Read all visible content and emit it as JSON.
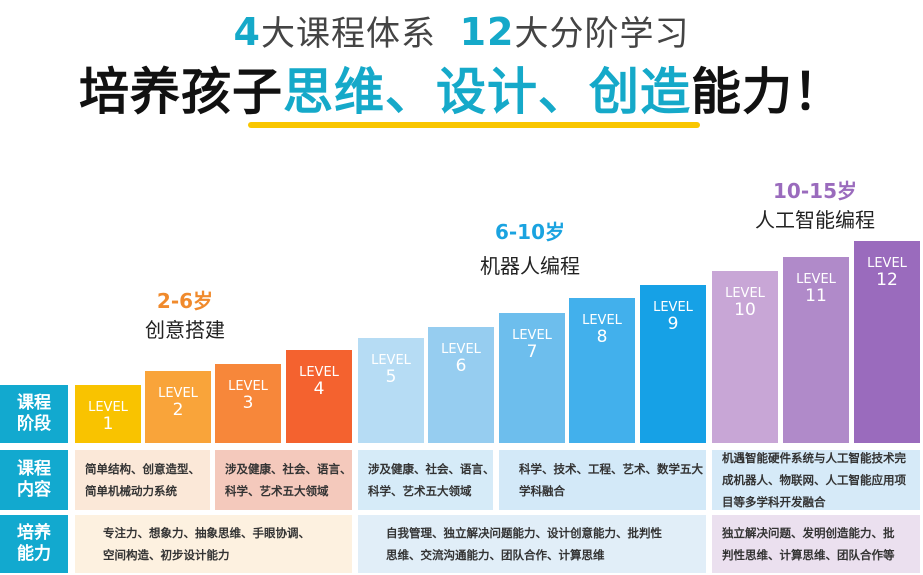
{
  "header": {
    "subtitle_num1": "4",
    "subtitle_text1": "大课程体系",
    "subtitle_num2": "12",
    "subtitle_text2": "大分阶学习",
    "headline_pre": "培养孩子",
    "headline_highlight": "思维、设计、创造",
    "headline_post": "能力！"
  },
  "stages": [
    {
      "age": "2-6岁",
      "track": "创意搭建",
      "color": "#f08a2c"
    },
    {
      "age": "6-10岁",
      "track": "机器人编程",
      "color": "#1aa3e0"
    },
    {
      "age": "10-15岁",
      "track": "人工智能编程",
      "color": "#9a6bbd"
    }
  ],
  "levels": [
    {
      "label": "LEVEL",
      "num": "1",
      "color": "#f9c300"
    },
    {
      "label": "LEVEL",
      "num": "2",
      "color": "#f9a43a"
    },
    {
      "label": "LEVEL",
      "num": "3",
      "color": "#f7873a"
    },
    {
      "label": "LEVEL",
      "num": "4",
      "color": "#f4622f"
    },
    {
      "label": "LEVEL",
      "num": "5",
      "color": "#b6dcf4"
    },
    {
      "label": "LEVEL",
      "num": "6",
      "color": "#96cdf0"
    },
    {
      "label": "LEVEL",
      "num": "7",
      "color": "#6dbeed"
    },
    {
      "label": "LEVEL",
      "num": "8",
      "color": "#42b0ec"
    },
    {
      "label": "LEVEL",
      "num": "9",
      "color": "#16a1e6"
    },
    {
      "label": "LEVEL",
      "num": "10",
      "color": "#c8a6d6"
    },
    {
      "label": "LEVEL",
      "num": "11",
      "color": "#b08ac9"
    },
    {
      "label": "LEVEL",
      "num": "12",
      "color": "#9a6bbd"
    }
  ],
  "row_labels": {
    "stage": "课程\n阶段",
    "content": "课程\n内容",
    "ability": "培养\n能力"
  },
  "content": [
    {
      "text": "简单结构、创意造型、\n简单机械动力系统",
      "color": "#fbe8d8"
    },
    {
      "text": "涉及健康、社会、语言、\n科学、艺术五大领域",
      "color": "#f4c9bc"
    },
    {
      "text": "涉及健康、社会、语言、\n科学、艺术五大领域",
      "color": "#d6ebf8"
    },
    {
      "text": "科学、技术、工程、艺术、数学五大\n学科融合",
      "color": "#d3e9f8"
    },
    {
      "text": "机遇智能硬件系统与人工智能技术完\n成机器人、物联网、人工智能应用项\n目等多学科开发融合",
      "color": "#d6eaf8"
    }
  ],
  "ability": [
    {
      "text": "专注力、想象力、抽象思维、手眼协调、\n空间构造、初步设计能力",
      "color": "#fdf1e0"
    },
    {
      "text": "自我管理、独立解决问题能力、设计创意能力、批判性\n思维、交流沟通能力、团队合作、计算思维",
      "color": "#e1eef8"
    },
    {
      "text": "独立解决问题、发明创造能力、批\n判性思维、计算思维、团队合作等",
      "color": "#ebe0ef"
    }
  ]
}
